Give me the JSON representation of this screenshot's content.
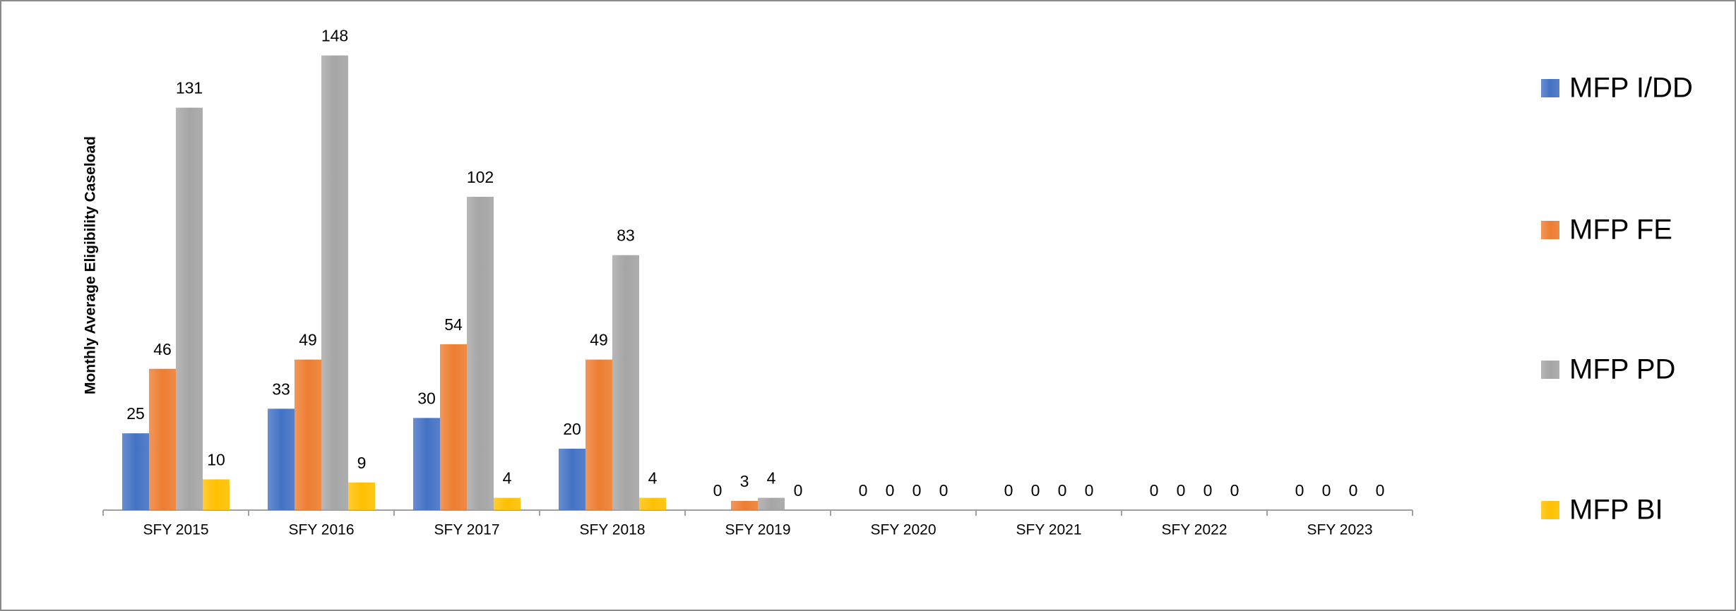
{
  "chart_data": {
    "type": "bar",
    "y_label": "Monthly Average Eligibility Caseload",
    "categories": [
      "SFY 2015",
      "SFY 2016",
      "SFY 2017",
      "SFY 2018",
      "SFY 2019",
      "SFY 2020",
      "SFY 2021",
      "SFY 2022",
      "SFY 2023"
    ],
    "series": [
      {
        "name": "MFP I/DD",
        "color": "#4472c4",
        "values": [
          25,
          33,
          30,
          20,
          0,
          0,
          0,
          0,
          0
        ]
      },
      {
        "name": "MFP FE",
        "color": "#ed7d31",
        "values": [
          46,
          49,
          54,
          49,
          3,
          0,
          0,
          0,
          0
        ]
      },
      {
        "name": "MFP PD",
        "color": "#a5a5a5",
        "values": [
          131,
          148,
          102,
          83,
          4,
          0,
          0,
          0,
          0
        ]
      },
      {
        "name": "MFP BI",
        "color": "#ffc000",
        "values": [
          10,
          9,
          4,
          4,
          0,
          0,
          0,
          0,
          0
        ]
      }
    ],
    "ylim": [
      0,
      160
    ],
    "legend": "right"
  }
}
